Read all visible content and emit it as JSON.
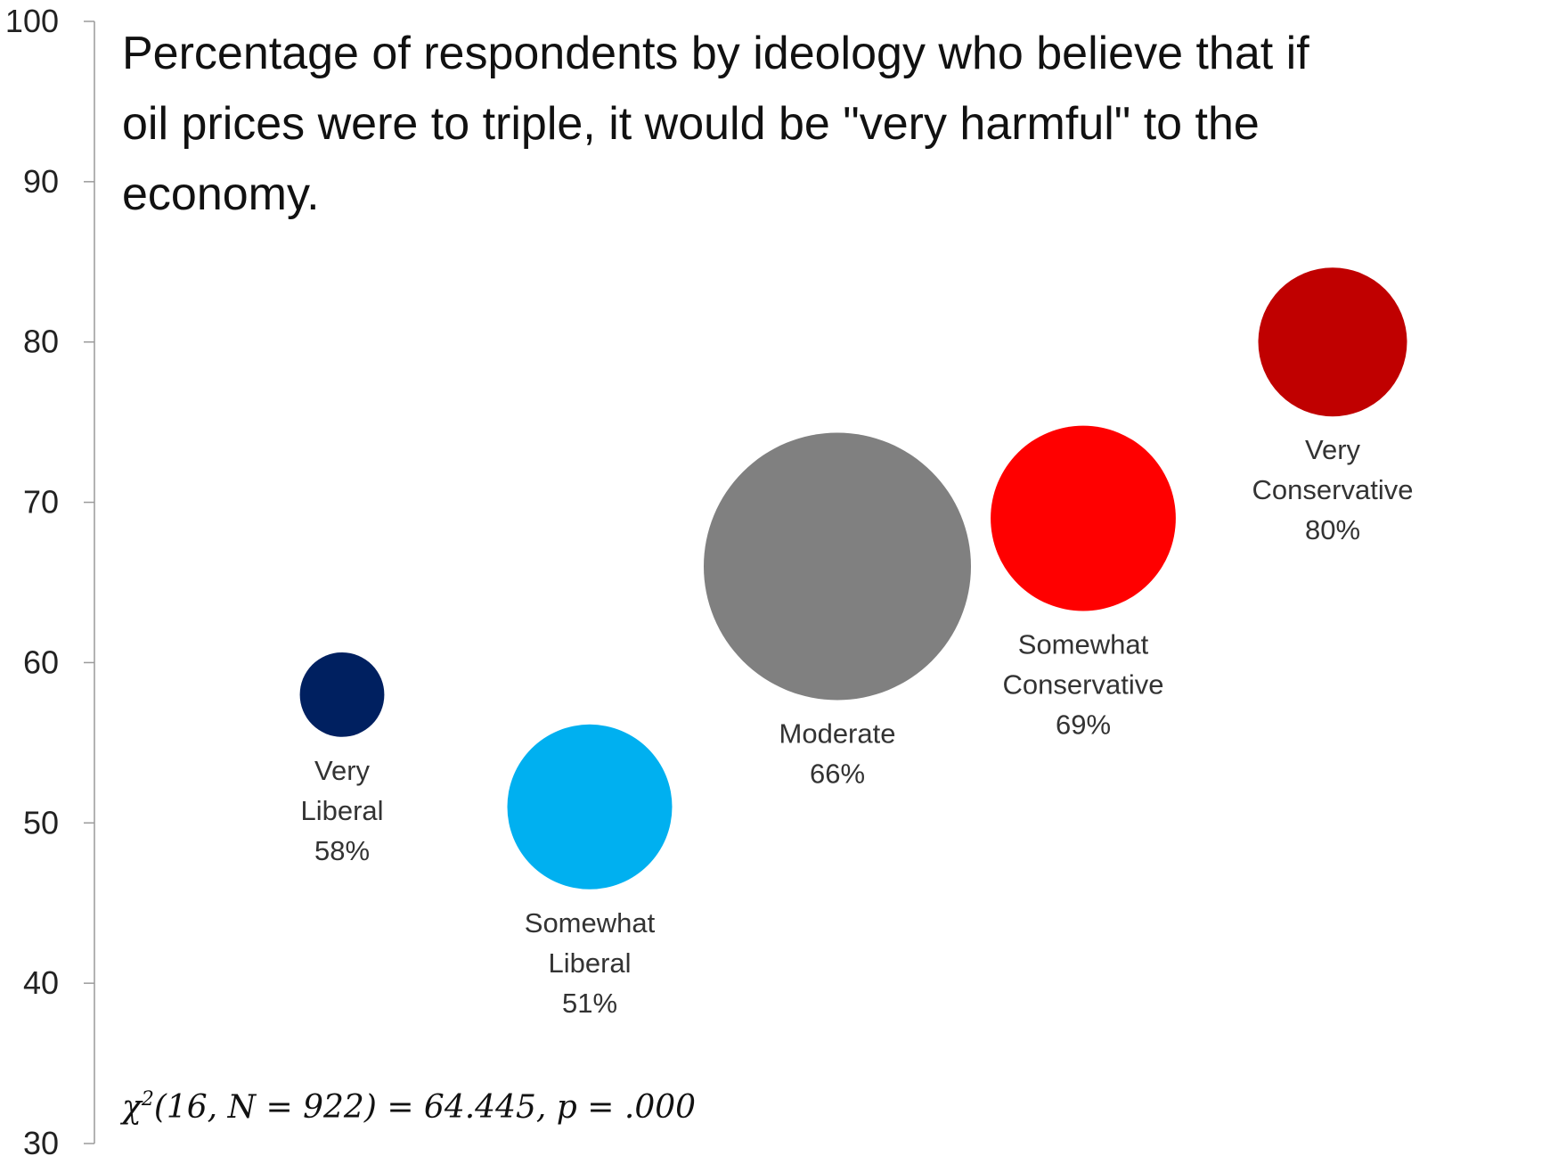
{
  "chart_data": {
    "type": "bubble",
    "title": [
      "Percentage of respondents by ideology who believe that if",
      "oil prices were to triple, it would be \"very harmful\" to the",
      "economy."
    ],
    "ylim": [
      30,
      100
    ],
    "yticks": [
      "30",
      "40",
      "50",
      "60",
      "70",
      "80",
      "90",
      "100"
    ],
    "grid": false,
    "legend": "none",
    "points": [
      {
        "label_lines": [
          "Very",
          "Liberal"
        ],
        "value_label": "58%",
        "y": 58,
        "size": 0.1,
        "color": "#002060"
      },
      {
        "label_lines": [
          "Somewhat",
          "Liberal"
        ],
        "value_label": "51%",
        "y": 51,
        "size": 0.38,
        "color": "#00B0F0"
      },
      {
        "label_lines": [
          "Moderate"
        ],
        "value_label": "66%",
        "y": 66,
        "size": 1.0,
        "color": "#808080"
      },
      {
        "label_lines": [
          "Somewhat",
          "Conservative"
        ],
        "value_label": "69%",
        "y": 69,
        "size": 0.48,
        "color": "#FF0000"
      },
      {
        "label_lines": [
          "Very",
          "Conservative"
        ],
        "value_label": "80%",
        "y": 80,
        "size": 0.31,
        "color": "#C00000"
      }
    ],
    "annotation": {
      "symbol": "χ",
      "superscript": "2",
      "text": "(16, N = 922) = 64.445, p = .000"
    }
  }
}
